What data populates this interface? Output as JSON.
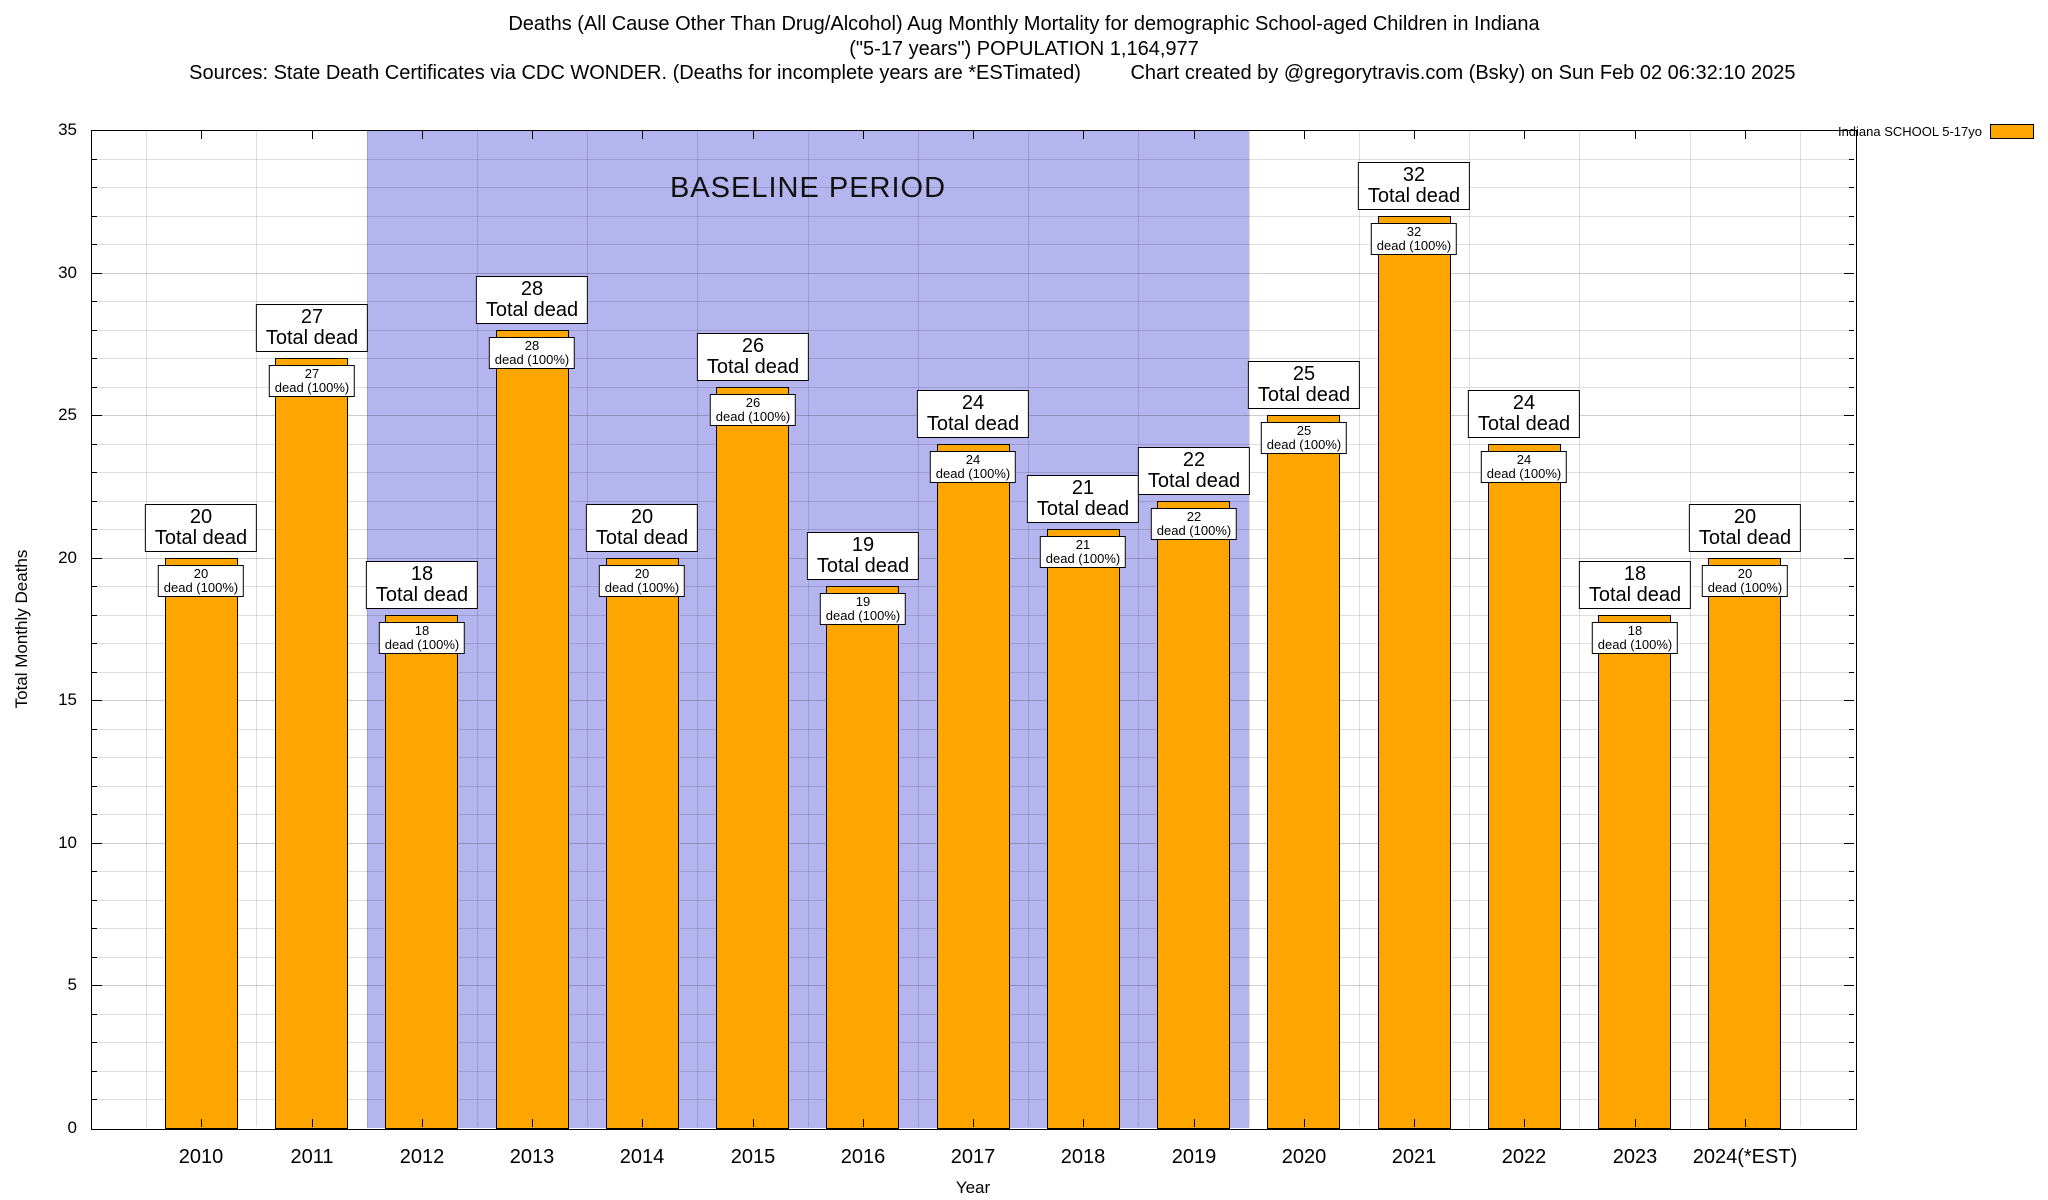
{
  "header": {
    "title_line1": "Deaths (All Cause Other Than Drug/Alcohol) Aug Monthly Mortality for demographic School-aged Children in Indiana",
    "title_line2": "(\"5-17 years\") POPULATION 1,164,977",
    "sources_line": "Sources: State Death Certificates via CDC WONDER. (Deaths for incomplete years are *ESTimated)",
    "credit_line": "Chart created by @gregorytravis.com (Bsky) on Sun Feb 02 06:32:10 2025"
  },
  "chart_data": {
    "type": "bar",
    "title": "Deaths (All Cause Other Than Drug/Alcohol) Aug Monthly Mortality for demographic School-aged Children in Indiana (\"5-17 years\") POPULATION 1,164,977",
    "xlabel": "Year",
    "ylabel": "Total Monthly Deaths",
    "ylim": [
      0,
      35
    ],
    "ytick_step": 5,
    "minor_grid_step": 1,
    "grid": true,
    "legend_position": "top-right",
    "series_name": "Indiana SCHOOL 5-17yo",
    "bar_color": "#ffa500",
    "categories": [
      "2010",
      "2011",
      "2012",
      "2013",
      "2014",
      "2015",
      "2016",
      "2017",
      "2018",
      "2019",
      "2020",
      "2021",
      "2022",
      "2023",
      "2024(*EST)"
    ],
    "values": [
      20,
      27,
      18,
      28,
      20,
      26,
      19,
      24,
      21,
      22,
      25,
      32,
      24,
      18,
      20
    ],
    "bar_top_label_suffix": "Total dead",
    "bar_inner_label_suffix": "dead (100%)",
    "baseline_region": {
      "label": "BASELINE PERIOD",
      "start_category": "2012",
      "end_category": "2019",
      "color": "#b4b4ee"
    }
  }
}
